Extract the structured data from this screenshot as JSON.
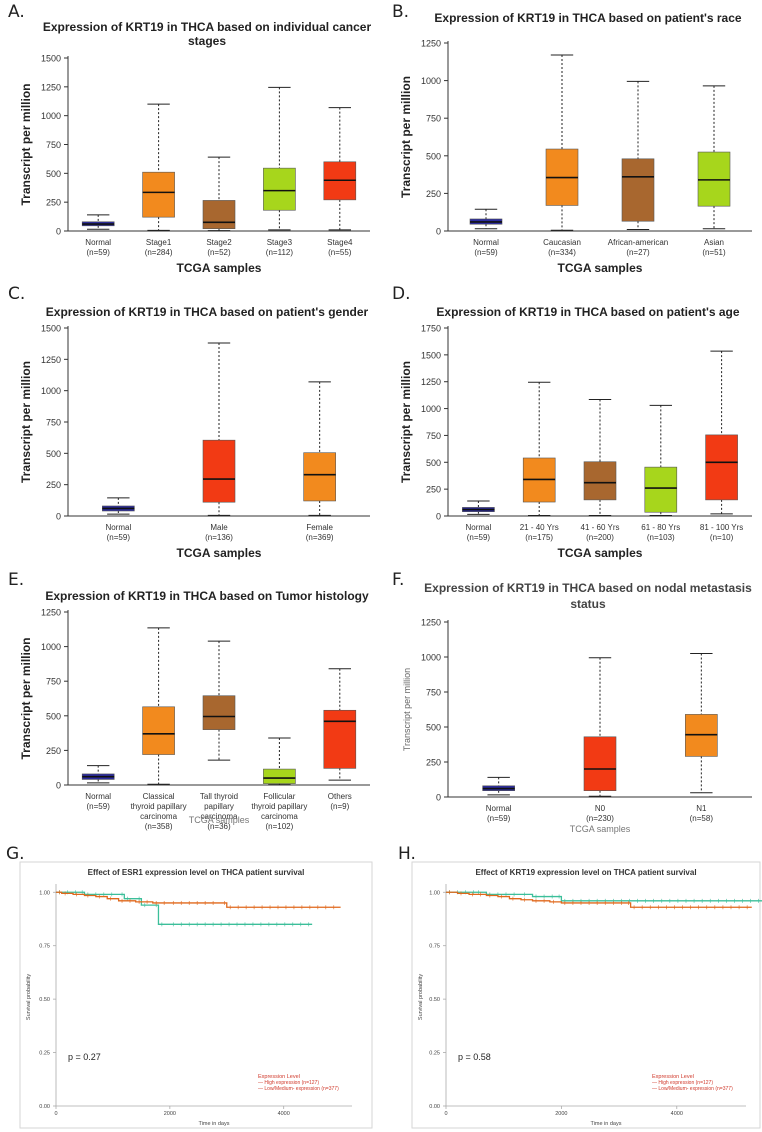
{
  "panel_labels": [
    "A.",
    "B.",
    "C.",
    "D.",
    "E.",
    "F.",
    "G.",
    "H."
  ],
  "colors": {
    "normal": "#2b2b9e",
    "orange": "#f28a1e",
    "brown": "#a8672f",
    "green": "#a7d61c",
    "red": "#f23a14",
    "km_high": "#e0681c",
    "km_low": "#3cbf9a"
  },
  "chart_data": [
    {
      "type": "boxplot",
      "title": [
        "Expression of KRT19 in THCA based on individual cancer",
        "stages"
      ],
      "xlabel": "TCGA samples",
      "ylabel": "Transcript per million",
      "ylim": [
        0,
        1500
      ],
      "yticks": [
        0,
        250,
        500,
        750,
        1000,
        1250,
        1500
      ],
      "boxes": [
        {
          "name": "Normal",
          "n": "(n=59)",
          "min": 15,
          "q1": 45,
          "median": 60,
          "q3": 80,
          "max": 140,
          "color": "#2b2b9e"
        },
        {
          "name": "Stage1",
          "n": "(n=284)",
          "min": 5,
          "q1": 120,
          "median": 335,
          "q3": 510,
          "max": 1100,
          "color": "#f28a1e"
        },
        {
          "name": "Stage2",
          "n": "(n=52)",
          "min": 3,
          "q1": 20,
          "median": 75,
          "q3": 265,
          "max": 640,
          "color": "#a8672f"
        },
        {
          "name": "Stage3",
          "n": "(n=112)",
          "min": 10,
          "q1": 180,
          "median": 350,
          "q3": 545,
          "max": 1245,
          "color": "#a7d61c"
        },
        {
          "name": "Stage4",
          "n": "(n=55)",
          "min": 10,
          "q1": 270,
          "median": 440,
          "q3": 600,
          "max": 1070,
          "color": "#f23a14"
        }
      ]
    },
    {
      "type": "boxplot",
      "title": [
        "Expression of KRT19 in THCA based on patient's race"
      ],
      "xlabel": "TCGA samples",
      "ylabel": "Transcript per million",
      "ylim": [
        0,
        1250
      ],
      "yticks": [
        0,
        250,
        500,
        750,
        1000,
        1250
      ],
      "boxes": [
        {
          "name": "Normal",
          "n": "(n=59)",
          "min": 15,
          "q1": 45,
          "median": 60,
          "q3": 80,
          "max": 145,
          "color": "#2b2b9e"
        },
        {
          "name": "Caucasian",
          "n": "(n=334)",
          "min": 5,
          "q1": 170,
          "median": 355,
          "q3": 545,
          "max": 1170,
          "color": "#f28a1e"
        },
        {
          "name": "African-american",
          "n": "(n=27)",
          "min": 10,
          "q1": 65,
          "median": 360,
          "q3": 480,
          "max": 995,
          "color": "#a8672f"
        },
        {
          "name": "Asian",
          "n": "(n=51)",
          "min": 15,
          "q1": 165,
          "median": 340,
          "q3": 525,
          "max": 965,
          "color": "#a7d61c"
        }
      ]
    },
    {
      "type": "boxplot",
      "title": [
        "Expression of KRT19 in THCA based on patient's gender"
      ],
      "xlabel": "TCGA samples",
      "ylabel": "Transcript per million",
      "ylim": [
        0,
        1500
      ],
      "yticks": [
        0,
        250,
        500,
        750,
        1000,
        1250,
        1500
      ],
      "boxes": [
        {
          "name": "Normal",
          "n": "(n=59)",
          "min": 15,
          "q1": 40,
          "median": 60,
          "q3": 80,
          "max": 145,
          "color": "#2b2b9e"
        },
        {
          "name": "Male",
          "n": "(n=136)",
          "min": 5,
          "q1": 110,
          "median": 295,
          "q3": 605,
          "max": 1380,
          "color": "#f23a14"
        },
        {
          "name": "Female",
          "n": "(n=369)",
          "min": 5,
          "q1": 120,
          "median": 330,
          "q3": 505,
          "max": 1070,
          "color": "#f28a1e"
        }
      ]
    },
    {
      "type": "boxplot",
      "title": [
        "Expression of KRT19 in THCA based on patient's age"
      ],
      "xlabel": "TCGA samples",
      "ylabel": "Transcript per million",
      "ylim": [
        0,
        1750
      ],
      "yticks": [
        0,
        250,
        500,
        750,
        1000,
        1250,
        1500,
        1750
      ],
      "boxes": [
        {
          "name": "Normal",
          "n": "(n=59)",
          "min": 15,
          "q1": 40,
          "median": 60,
          "q3": 80,
          "max": 140,
          "color": "#2b2b9e"
        },
        {
          "name": "21 - 40 Yrs",
          "n": "(n=175)",
          "min": 5,
          "q1": 130,
          "median": 340,
          "q3": 540,
          "max": 1245,
          "color": "#f28a1e"
        },
        {
          "name": "41 - 60 Yrs",
          "n": "(n=200)",
          "min": 5,
          "q1": 150,
          "median": 310,
          "q3": 505,
          "max": 1085,
          "color": "#a8672f"
        },
        {
          "name": "61 - 80 Yrs",
          "n": "(n=103)",
          "min": 5,
          "q1": 35,
          "median": 260,
          "q3": 455,
          "max": 1030,
          "color": "#a7d61c"
        },
        {
          "name": "81 - 100 Yrs",
          "n": "(n=10)",
          "min": 20,
          "q1": 150,
          "median": 500,
          "q3": 755,
          "max": 1535,
          "color": "#f23a14"
        }
      ]
    },
    {
      "type": "boxplot",
      "title": [
        "Expression of KRT19 in THCA based on Tumor histology"
      ],
      "xlabel": "TCGA samples",
      "ylabel": "Transcript per million",
      "ylim": [
        0,
        1250
      ],
      "yticks": [
        0,
        250,
        500,
        750,
        1000,
        1250
      ],
      "boxes": [
        {
          "name": "Normal",
          "n": "(n=59)",
          "min": 15,
          "q1": 40,
          "median": 60,
          "q3": 80,
          "max": 140,
          "color": "#2b2b9e"
        },
        {
          "name": "Classical thyroid papillary carcinoma",
          "lines": [
            "Classical",
            "thyroid papillary",
            "carcinoma"
          ],
          "n": "(n=358)",
          "min": 5,
          "q1": 220,
          "median": 370,
          "q3": 565,
          "max": 1135,
          "color": "#f28a1e"
        },
        {
          "name": "Tall thyroid papillary carcinoma",
          "lines": [
            "Tall thyroid",
            "papillary",
            "carcinoma"
          ],
          "n": "(n=36)",
          "min": 180,
          "q1": 400,
          "median": 495,
          "q3": 645,
          "max": 1040,
          "color": "#a8672f"
        },
        {
          "name": "Follicular thyroid papillary carcinoma",
          "lines": [
            "Follicular",
            "thyroid papillary",
            "carcinoma"
          ],
          "n": "(n=102)",
          "min": 3,
          "q1": 10,
          "median": 50,
          "q3": 115,
          "max": 340,
          "color": "#a7d61c"
        },
        {
          "name": "Others",
          "n": "(n=9)",
          "min": 35,
          "q1": 120,
          "median": 460,
          "q3": 540,
          "max": 840,
          "color": "#f23a14"
        }
      ]
    },
    {
      "type": "boxplot",
      "title": [
        "Expression of KRT19 in THCA based on nodal metastasis",
        "status"
      ],
      "xlabel": "TCGA samples",
      "ylabel": "Transcript per million",
      "ylim": [
        0,
        1250
      ],
      "yticks": [
        0,
        250,
        500,
        750,
        1000,
        1250
      ],
      "boxes": [
        {
          "name": "Normal",
          "n": "(n=59)",
          "min": 15,
          "q1": 45,
          "median": 60,
          "q3": 80,
          "max": 140,
          "color": "#2b2b9e"
        },
        {
          "name": "N0",
          "n": "(n=230)",
          "min": 5,
          "q1": 45,
          "median": 200,
          "q3": 430,
          "max": 995,
          "color": "#f23a14"
        },
        {
          "name": "N1",
          "n": "(n=58)",
          "min": 30,
          "q1": 290,
          "median": 445,
          "q3": 590,
          "max": 1025,
          "color": "#f28a1e"
        }
      ]
    },
    {
      "type": "line",
      "subtype": "kaplan-meier",
      "title": "Effect of ESR1 expression level on THCA patient survival",
      "xlabel": "Time in days",
      "ylabel": "Survival probability",
      "xlim": [
        0,
        5200
      ],
      "ylim": [
        0,
        1.02
      ],
      "xticks": [
        0,
        2000,
        4000
      ],
      "yticks": [
        0.0,
        0.25,
        0.5,
        0.75,
        1.0
      ],
      "ytick_labels": [
        "0.00",
        "0.25",
        "0.50",
        "0.75",
        "1.00"
      ],
      "pvalue": "p = 0.27",
      "legend_title": "Expression Level",
      "series": [
        {
          "name": "High expression (n=127)",
          "color": "#3cbf9a",
          "x": [
            0,
            400,
            500,
            1100,
            1200,
            1400,
            1500,
            1700,
            1800,
            2000,
            4500
          ],
          "y": [
            1.0,
            1.0,
            0.99,
            0.99,
            0.97,
            0.97,
            0.94,
            0.94,
            0.85,
            0.85,
            0.85
          ]
        },
        {
          "name": "Low/Medium-expression (n=377)",
          "color": "#e0681c",
          "x": [
            0,
            100,
            300,
            500,
            700,
            900,
            1100,
            1400,
            1700,
            2000,
            2900,
            3000,
            5000
          ],
          "y": [
            1.0,
            0.995,
            0.99,
            0.985,
            0.98,
            0.97,
            0.96,
            0.955,
            0.95,
            0.95,
            0.95,
            0.93,
            0.93
          ]
        }
      ],
      "legend_labels": [
        "— High expression (n=127)",
        "— Low/Medium- expression (n=377)"
      ]
    },
    {
      "type": "line",
      "subtype": "kaplan-meier",
      "title": "Effect of KRT19 expression level on THCA patient survival",
      "xlabel": "Time in days",
      "ylabel": "Survival probability",
      "xlim": [
        0,
        5200
      ],
      "ylim": [
        0,
        1.02
      ],
      "xticks": [
        0,
        2000,
        4000
      ],
      "yticks": [
        0.0,
        0.25,
        0.5,
        0.75,
        1.0
      ],
      "ytick_labels": [
        "0.00",
        "0.25",
        "0.50",
        "0.75",
        "1.00"
      ],
      "pvalue": "p = 0.58",
      "legend_title": "Expression Level",
      "series": [
        {
          "name": "High expression (n=127)",
          "color": "#3cbf9a",
          "x": [
            0,
            500,
            700,
            1300,
            1500,
            1900,
            2000,
            5500
          ],
          "y": [
            1.0,
            1.0,
            0.99,
            0.99,
            0.98,
            0.98,
            0.96,
            0.96
          ]
        },
        {
          "name": "Low/Medium-expression (n=377)",
          "color": "#e0681c",
          "x": [
            0,
            200,
            400,
            700,
            900,
            1100,
            1300,
            1500,
            1800,
            2000,
            3100,
            3200,
            5300
          ],
          "y": [
            1.0,
            0.995,
            0.99,
            0.985,
            0.98,
            0.97,
            0.965,
            0.96,
            0.955,
            0.95,
            0.95,
            0.93,
            0.93
          ]
        }
      ],
      "legend_labels": [
        "— High expression (n=127)",
        "— Low/Medium- expression (n=377)"
      ]
    }
  ]
}
